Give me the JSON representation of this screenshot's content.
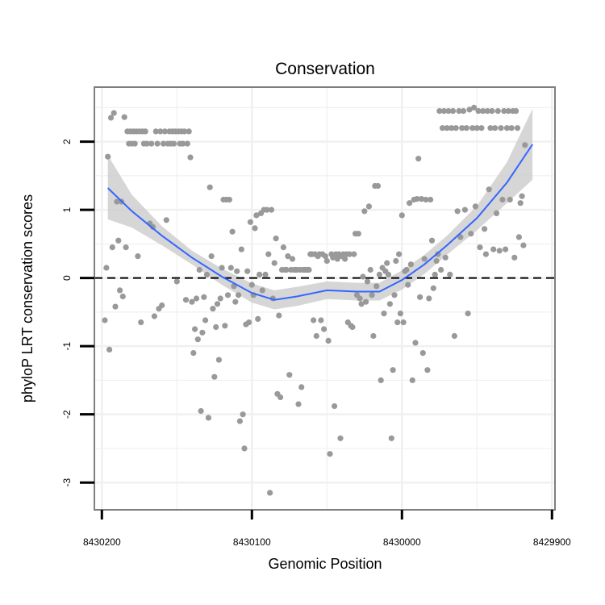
{
  "chart_data": {
    "type": "scatter",
    "title": "Conservation",
    "xlabel": "Genomic Position",
    "ylabel": "phyloP LRT conservation scores",
    "x_reversed": true,
    "xlim": [
      8430205,
      8429898
    ],
    "ylim": [
      -3.4,
      2.8
    ],
    "x_ticks": [
      8430200,
      8430100,
      8430000,
      8429900
    ],
    "x_tick_labels": [
      "8430200",
      "8430100",
      "8430000",
      "8429900"
    ],
    "y_ticks": [
      -3,
      -2,
      -1,
      0,
      1,
      2
    ],
    "y_tick_labels": [
      "-3",
      "-2",
      "-1",
      "0",
      "1",
      "2"
    ],
    "grid": true,
    "reference_line": {
      "y": 0,
      "style": "dashed"
    },
    "colors": {
      "points": "#999999",
      "smooth": "#3366ff",
      "band": "#cccccc",
      "frame": "#7f7f7f",
      "grid": "#f0f0f0"
    },
    "smooth": {
      "x": [
        8430196,
        8430180,
        8430160,
        8430140,
        8430120,
        8430100,
        8430085,
        8430070,
        8430050,
        8430030,
        8430015,
        8430000,
        8429985,
        8429970,
        8429950,
        8429930,
        8429913
      ],
      "y": [
        1.32,
        0.98,
        0.62,
        0.3,
        0.02,
        -0.22,
        -0.32,
        -0.27,
        -0.18,
        -0.2,
        -0.2,
        -0.03,
        0.2,
        0.48,
        0.88,
        1.4,
        1.96
      ],
      "band_upper": [
        1.8,
        1.22,
        0.76,
        0.4,
        0.14,
        -0.08,
        -0.18,
        -0.13,
        -0.05,
        -0.07,
        -0.07,
        0.11,
        0.34,
        0.62,
        1.06,
        1.7,
        2.48
      ],
      "band_lower": [
        0.86,
        0.74,
        0.48,
        0.2,
        -0.1,
        -0.36,
        -0.46,
        -0.41,
        -0.31,
        -0.33,
        -0.33,
        -0.17,
        0.06,
        0.34,
        0.7,
        1.1,
        1.44
      ]
    },
    "points": [
      [
        8430198,
        -0.62
      ],
      [
        8430197,
        0.15
      ],
      [
        8430196,
        1.78
      ],
      [
        8430195,
        -1.05
      ],
      [
        8430194,
        2.35
      ],
      [
        8430193,
        0.45
      ],
      [
        8430192,
        2.42
      ],
      [
        8430191,
        -0.42
      ],
      [
        8430190,
        1.12
      ],
      [
        8430189,
        0.55
      ],
      [
        8430188,
        -0.18
      ],
      [
        8430187,
        1.12
      ],
      [
        8430186,
        -0.27
      ],
      [
        8430185,
        2.36
      ],
      [
        8430184,
        0.45
      ],
      [
        8430183,
        2.15
      ],
      [
        8430182,
        1.97
      ],
      [
        8430181,
        2.15
      ],
      [
        8430180,
        1.97
      ],
      [
        8430179,
        2.15
      ],
      [
        8430178,
        1.97
      ],
      [
        8430177,
        2.15
      ],
      [
        8430176,
        0.32
      ],
      [
        8430175,
        2.15
      ],
      [
        8430174,
        -0.65
      ],
      [
        8430173,
        2.15
      ],
      [
        8430172,
        1.97
      ],
      [
        8430171,
        2.15
      ],
      [
        8430170,
        1.97
      ],
      [
        8430168,
        0.8
      ],
      [
        8430167,
        1.97
      ],
      [
        8430166,
        0.75
      ],
      [
        8430165,
        -0.56
      ],
      [
        8430164,
        2.15
      ],
      [
        8430163,
        1.97
      ],
      [
        8430162,
        -0.45
      ],
      [
        8430161,
        2.15
      ],
      [
        8430160,
        -0.4
      ],
      [
        8430159,
        1.97
      ],
      [
        8430158,
        2.15
      ],
      [
        8430157,
        0.85
      ],
      [
        8430156,
        1.97
      ],
      [
        8430155,
        2.15
      ],
      [
        8430154,
        1.97
      ],
      [
        8430153,
        2.15
      ],
      [
        8430152,
        1.97
      ],
      [
        8430151,
        2.15
      ],
      [
        8430150,
        -0.05
      ],
      [
        8430149,
        2.15
      ],
      [
        8430148,
        1.97
      ],
      [
        8430147,
        2.15
      ],
      [
        8430146,
        1.97
      ],
      [
        8430145,
        2.15
      ],
      [
        8430144,
        -0.32
      ],
      [
        8430143,
        1.97
      ],
      [
        8430142,
        2.15
      ],
      [
        8430141,
        1.77
      ],
      [
        8430140,
        -0.35
      ],
      [
        8430139,
        -1.1
      ],
      [
        8430138,
        -0.75
      ],
      [
        8430137,
        -0.3
      ],
      [
        8430136,
        -0.9
      ],
      [
        8430135,
        0.12
      ],
      [
        8430134,
        -1.95
      ],
      [
        8430133,
        -0.8
      ],
      [
        8430132,
        -0.28
      ],
      [
        8430131,
        -0.62
      ],
      [
        8430130,
        0.05
      ],
      [
        8430129,
        -2.05
      ],
      [
        8430128,
        1.33
      ],
      [
        8430127,
        0.32
      ],
      [
        8430126,
        -0.45
      ],
      [
        8430125,
        -1.45
      ],
      [
        8430124,
        -0.72
      ],
      [
        8430123,
        -0.38
      ],
      [
        8430122,
        -1.2
      ],
      [
        8430121,
        -0.3
      ],
      [
        8430120,
        0.15
      ],
      [
        8430119,
        1.15
      ],
      [
        8430118,
        -0.7
      ],
      [
        8430117,
        1.15
      ],
      [
        8430116,
        -0.25
      ],
      [
        8430115,
        1.15
      ],
      [
        8430114,
        0.15
      ],
      [
        8430113,
        0.68
      ],
      [
        8430112,
        -0.12
      ],
      [
        8430111,
        -0.35
      ],
      [
        8430110,
        0.1
      ],
      [
        8430109,
        -0.25
      ],
      [
        8430108,
        -2.1
      ],
      [
        8430107,
        0.42
      ],
      [
        8430106,
        -2.0
      ],
      [
        8430105,
        -2.5
      ],
      [
        8430104,
        -0.68
      ],
      [
        8430103,
        0.1
      ],
      [
        8430102,
        -0.65
      ],
      [
        8430101,
        0.82
      ],
      [
        8430100,
        -0.1
      ],
      [
        8430099,
        -0.25
      ],
      [
        8430098,
        0.73
      ],
      [
        8430097,
        0.92
      ],
      [
        8430096,
        -0.6
      ],
      [
        8430095,
        0.05
      ],
      [
        8430094,
        0.95
      ],
      [
        8430093,
        -0.18
      ],
      [
        8430092,
        1.0
      ],
      [
        8430091,
        0.05
      ],
      [
        8430090,
        1.0
      ],
      [
        8430089,
        0.35
      ],
      [
        8430088,
        -3.15
      ],
      [
        8430087,
        1.0
      ],
      [
        8430086,
        -0.3
      ],
      [
        8430085,
        0.22
      ],
      [
        8430084,
        0.58
      ],
      [
        8430083,
        -1.7
      ],
      [
        8430082,
        -0.55
      ],
      [
        8430081,
        -1.75
      ],
      [
        8430080,
        0.12
      ],
      [
        8430079,
        0.45
      ],
      [
        8430078,
        0.12
      ],
      [
        8430077,
        0.12
      ],
      [
        8430076,
        0.32
      ],
      [
        8430075,
        -1.42
      ],
      [
        8430074,
        0.12
      ],
      [
        8430073,
        0.28
      ],
      [
        8430072,
        0.12
      ],
      [
        8430071,
        0.12
      ],
      [
        8430070,
        0.12
      ],
      [
        8430069,
        -1.85
      ],
      [
        8430068,
        0.12
      ],
      [
        8430067,
        -1.6
      ],
      [
        8430066,
        0.12
      ],
      [
        8430065,
        0.12
      ],
      [
        8430064,
        0.12
      ],
      [
        8430063,
        0.12
      ],
      [
        8430062,
        0.12
      ],
      [
        8430061,
        0.35
      ],
      [
        8430060,
        0.35
      ],
      [
        8430059,
        -0.62
      ],
      [
        8430058,
        0.35
      ],
      [
        8430057,
        -0.85
      ],
      [
        8430056,
        0.32
      ],
      [
        8430055,
        0.35
      ],
      [
        8430054,
        -0.62
      ],
      [
        8430053,
        0.35
      ],
      [
        8430052,
        -0.75
      ],
      [
        8430051,
        0.32
      ],
      [
        8430050,
        0.25
      ],
      [
        8430049,
        -0.92
      ],
      [
        8430048,
        -2.58
      ],
      [
        8430047,
        0.35
      ],
      [
        8430046,
        0.3
      ],
      [
        8430045,
        -1.88
      ],
      [
        8430044,
        0.35
      ],
      [
        8430043,
        0.28
      ],
      [
        8430042,
        0.35
      ],
      [
        8430041,
        -2.35
      ],
      [
        8430040,
        0.32
      ],
      [
        8430039,
        0.35
      ],
      [
        8430038,
        0.28
      ],
      [
        8430037,
        0.35
      ],
      [
        8430036,
        -0.65
      ],
      [
        8430035,
        0.35
      ],
      [
        8430034,
        -0.7
      ],
      [
        8430033,
        -0.72
      ],
      [
        8430032,
        0.35
      ],
      [
        8430031,
        0.65
      ],
      [
        8430030,
        -0.25
      ],
      [
        8430029,
        0.65
      ],
      [
        8430028,
        -0.3
      ],
      [
        8430027,
        -0.38
      ],
      [
        8430026,
        0.02
      ],
      [
        8430025,
        0.98
      ],
      [
        8430024,
        -0.35
      ],
      [
        8430023,
        -0.05
      ],
      [
        8430022,
        1.05
      ],
      [
        8430021,
        0.12
      ],
      [
        8430020,
        -0.25
      ],
      [
        8430019,
        -0.85
      ],
      [
        8430018,
        1.35
      ],
      [
        8430017,
        -0.12
      ],
      [
        8430016,
        1.35
      ],
      [
        8430015,
        0.05
      ],
      [
        8430014,
        -1.5
      ],
      [
        8430013,
        0.15
      ],
      [
        8430012,
        -0.52
      ],
      [
        8430011,
        0.1
      ],
      [
        8430010,
        0.22
      ],
      [
        8430009,
        0.05
      ],
      [
        8430008,
        -0.38
      ],
      [
        8430007,
        -2.35
      ],
      [
        8430006,
        -1.35
      ],
      [
        8430005,
        -0.25
      ],
      [
        8430004,
        0.25
      ],
      [
        8430003,
        -0.65
      ],
      [
        8430002,
        0.35
      ],
      [
        8430001,
        -0.52
      ],
      [
        8430000,
        0.92
      ],
      [
        8429999,
        -0.65
      ],
      [
        8429998,
        0.1
      ],
      [
        8429997,
        0.12
      ],
      [
        8429996,
        -0.1
      ],
      [
        8429995,
        1.1
      ],
      [
        8429994,
        0.2
      ],
      [
        8429993,
        -1.5
      ],
      [
        8429992,
        1.15
      ],
      [
        8429991,
        -0.95
      ],
      [
        8429990,
        1.16
      ],
      [
        8429989,
        1.75
      ],
      [
        8429988,
        -0.28
      ],
      [
        8429987,
        1.16
      ],
      [
        8429986,
        -1.1
      ],
      [
        8429985,
        0.28
      ],
      [
        8429984,
        1.15
      ],
      [
        8429983,
        -1.35
      ],
      [
        8429982,
        -0.3
      ],
      [
        8429981,
        1.15
      ],
      [
        8429980,
        0.55
      ],
      [
        8429979,
        -0.15
      ],
      [
        8429978,
        0.05
      ],
      [
        8429977,
        0.25
      ],
      [
        8429976,
        0.35
      ],
      [
        8429975,
        2.45
      ],
      [
        8429974,
        0.12
      ],
      [
        8429973,
        2.2
      ],
      [
        8429972,
        2.45
      ],
      [
        8429971,
        0.3
      ],
      [
        8429970,
        2.2
      ],
      [
        8429969,
        2.45
      ],
      [
        8429968,
        0.05
      ],
      [
        8429967,
        2.2
      ],
      [
        8429966,
        2.45
      ],
      [
        8429965,
        -0.85
      ],
      [
        8429964,
        2.2
      ],
      [
        8429963,
        0.98
      ],
      [
        8429962,
        2.45
      ],
      [
        8429961,
        0.6
      ],
      [
        8429960,
        2.2
      ],
      [
        8429959,
        2.45
      ],
      [
        8429958,
        1.0
      ],
      [
        8429957,
        2.2
      ],
      [
        8429956,
        -0.52
      ],
      [
        8429955,
        2.47
      ],
      [
        8429954,
        0.65
      ],
      [
        8429953,
        2.2
      ],
      [
        8429952,
        2.5
      ],
      [
        8429951,
        1.05
      ],
      [
        8429950,
        2.2
      ],
      [
        8429949,
        2.45
      ],
      [
        8429948,
        0.45
      ],
      [
        8429947,
        2.2
      ],
      [
        8429946,
        2.45
      ],
      [
        8429945,
        0.72
      ],
      [
        8429944,
        0.35
      ],
      [
        8429943,
        2.45
      ],
      [
        8429942,
        1.3
      ],
      [
        8429941,
        2.2
      ],
      [
        8429940,
        2.45
      ],
      [
        8429939,
        0.42
      ],
      [
        8429938,
        2.2
      ],
      [
        8429937,
        0.95
      ],
      [
        8429936,
        2.45
      ],
      [
        8429935,
        0.4
      ],
      [
        8429934,
        2.2
      ],
      [
        8429933,
        1.15
      ],
      [
        8429932,
        2.45
      ],
      [
        8429931,
        0.42
      ],
      [
        8429930,
        2.2
      ],
      [
        8429929,
        2.45
      ],
      [
        8429928,
        1.15
      ],
      [
        8429927,
        2.2
      ],
      [
        8429926,
        2.45
      ],
      [
        8429925,
        0.3
      ],
      [
        8429924,
        2.45
      ],
      [
        8429923,
        2.2
      ],
      [
        8429922,
        0.6
      ],
      [
        8429921,
        1.1
      ],
      [
        8429920,
        1.2
      ],
      [
        8429919,
        0.48
      ],
      [
        8429918,
        1.95
      ]
    ]
  }
}
